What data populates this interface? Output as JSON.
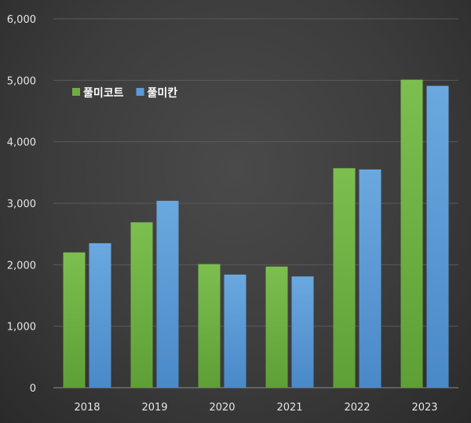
{
  "chart_data": {
    "type": "bar",
    "categories": [
      "2018",
      "2019",
      "2020",
      "2021",
      "2022",
      "2023"
    ],
    "series": [
      {
        "name": "풀미코트",
        "values": [
          2200,
          2690,
          2010,
          1970,
          3570,
          5010
        ],
        "color": "#6fae45"
      },
      {
        "name": "풀미칸",
        "values": [
          2350,
          3040,
          1840,
          1810,
          3550,
          4910
        ],
        "color": "#5b9bd5"
      }
    ],
    "yticks": [
      "0",
      "1,000",
      "2,000",
      "3,000",
      "4,000",
      "5,000",
      "6,000"
    ],
    "ylim": [
      0,
      6000
    ],
    "title": "",
    "xlabel": "",
    "ylabel": "",
    "grid": true,
    "legend_position": "top-left"
  }
}
